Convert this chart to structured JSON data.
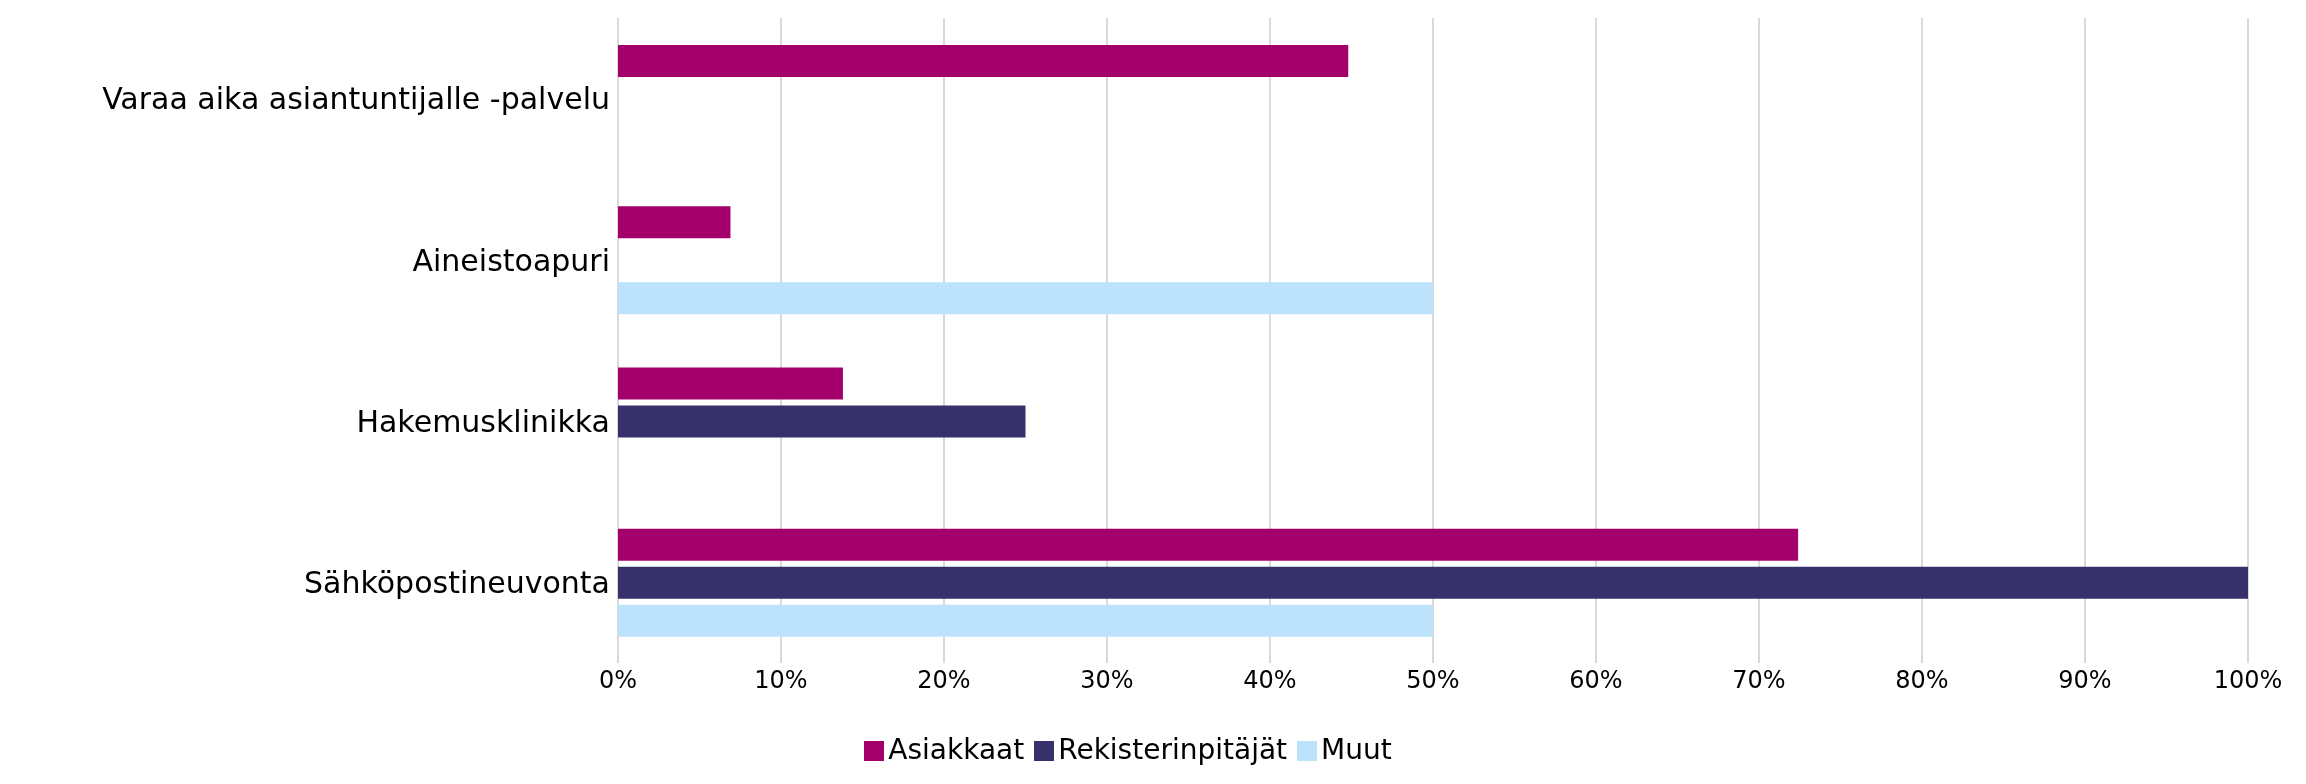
{
  "chart_data": {
    "type": "bar",
    "orientation": "horizontal",
    "categories": [
      "Varaa aika asiantuntijalle -palvelu",
      "Aineistoapuri",
      "Hakemusklinikka",
      "Sähköpostineuvonta"
    ],
    "series": [
      {
        "name": "Asiakkaat",
        "color": "#a3006b",
        "values": [
          44.8,
          6.9,
          13.8,
          72.4
        ]
      },
      {
        "name": "Rekisterinpitäjät",
        "color": "#36306b",
        "values": [
          null,
          null,
          25,
          100
        ]
      },
      {
        "name": "Muut",
        "color": "#bde3fc",
        "values": [
          null,
          50,
          null,
          50
        ]
      }
    ],
    "xlim": [
      0,
      100
    ],
    "xticks": [
      {
        "value": 0,
        "label": "0%"
      },
      {
        "value": 10,
        "label": "10%"
      },
      {
        "value": 20,
        "label": "20%"
      },
      {
        "value": 30,
        "label": "30%"
      },
      {
        "value": 40,
        "label": "40%"
      },
      {
        "value": 50,
        "label": "50%"
      },
      {
        "value": 60,
        "label": "60%"
      },
      {
        "value": 70,
        "label": "70%"
      },
      {
        "value": 80,
        "label": "80%"
      },
      {
        "value": 90,
        "label": "90%"
      },
      {
        "value": 100,
        "label": "100%"
      }
    ],
    "grid": "x",
    "legend": "bottom"
  }
}
